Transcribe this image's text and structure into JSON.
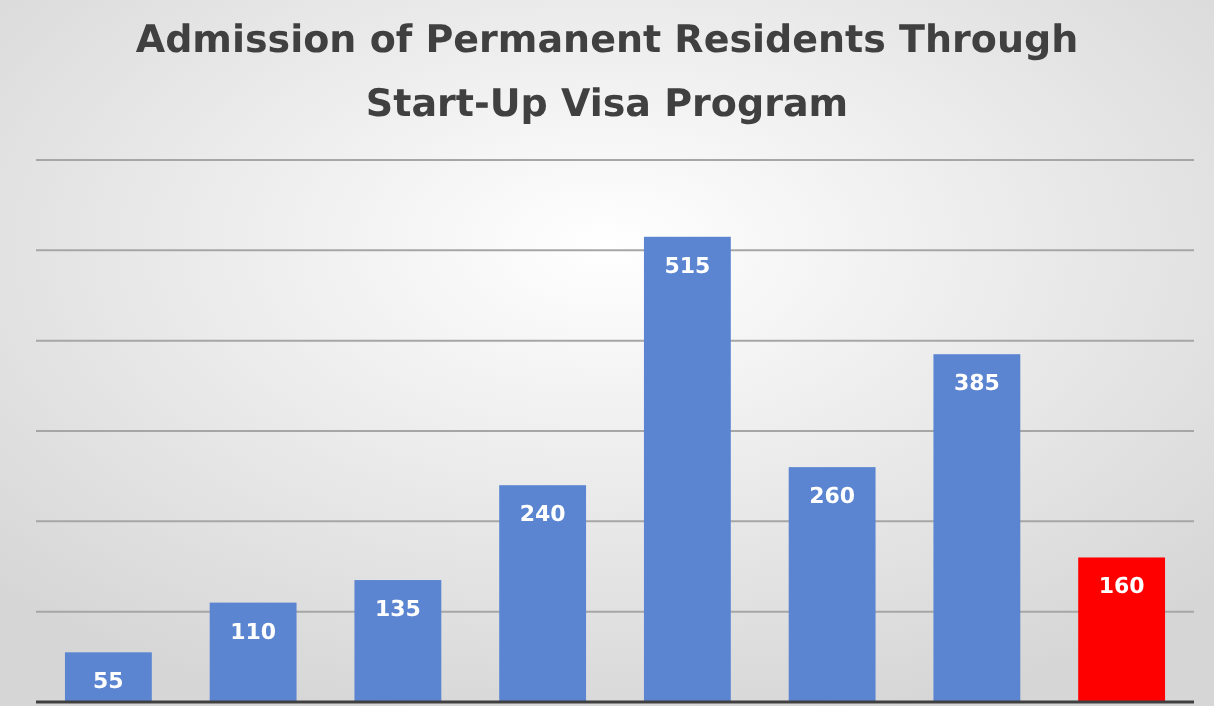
{
  "chart_data": {
    "type": "bar",
    "title": "Admission of Permanent Residents Through\nStart-Up Visa Program",
    "categories": [
      null,
      null,
      null,
      null,
      null,
      null,
      null,
      null
    ],
    "values": [
      55,
      110,
      135,
      240,
      515,
      260,
      385,
      160
    ],
    "colors": [
      "#5b85d0",
      "#5b85d0",
      "#5b85d0",
      "#5b85d0",
      "#5b85d0",
      "#5b85d0",
      "#5b85d0",
      "#ff0000"
    ],
    "ylim": [
      0,
      600
    ],
    "yticks": [
      {
        "value": 0,
        "label": null
      },
      {
        "value": 100,
        "label": null
      },
      {
        "value": 200,
        "label": null
      },
      {
        "value": 300,
        "label": null
      },
      {
        "value": 400,
        "label": null
      },
      {
        "value": 500,
        "label": null
      },
      {
        "value": 600,
        "label": null
      }
    ],
    "grid": true,
    "data_labels": true
  }
}
